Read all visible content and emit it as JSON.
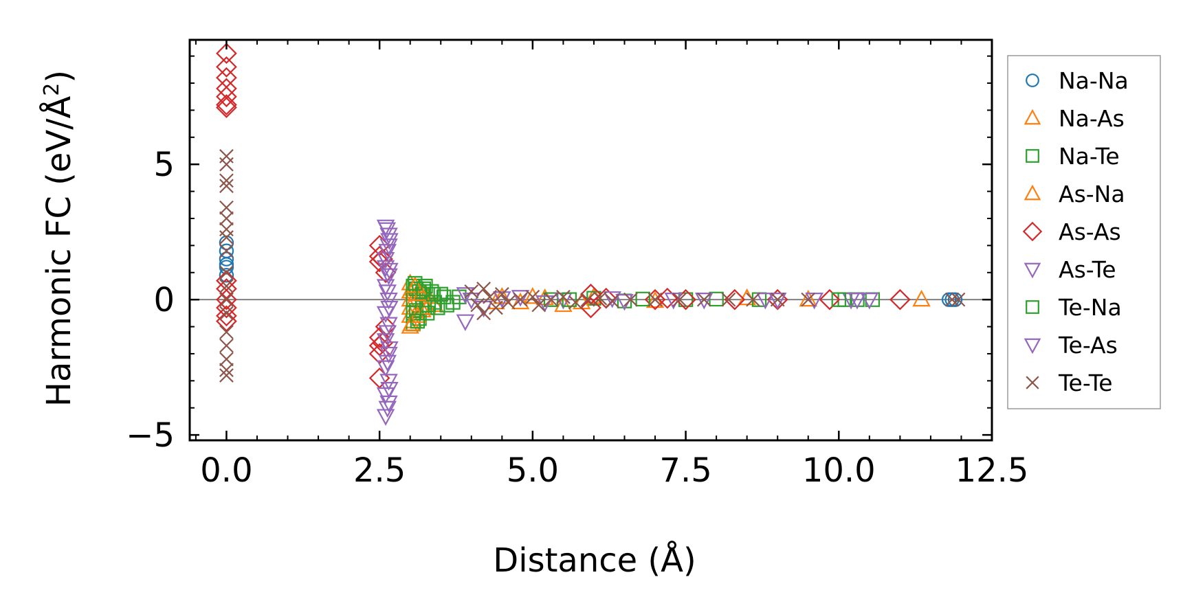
{
  "chart_data": {
    "type": "scatter",
    "title": "",
    "xlabel": "Distance (Å)",
    "ylabel": "Harmonic FC (eV/Å",
    "ylabel_sup": "2",
    "ylabel_close": ")",
    "xlim": [
      -0.6,
      12.5
    ],
    "ylim": [
      -5.2,
      9.6
    ],
    "xticks": [
      0.0,
      2.5,
      5.0,
      7.5,
      10.0,
      12.5
    ],
    "xtick_labels": [
      "0.0",
      "2.5",
      "5.0",
      "7.5",
      "10.0",
      "12.5"
    ],
    "yticks": [
      -5,
      0,
      5
    ],
    "ytick_labels": [
      "−5",
      "0",
      "5"
    ],
    "reference_line_y": 0,
    "legend_position": "right",
    "series": [
      {
        "name": "Na-Na",
        "marker": "circle",
        "color": "#1f77b4",
        "points": [
          [
            0,
            1.2
          ],
          [
            0,
            1.5
          ],
          [
            0,
            1.8
          ],
          [
            0,
            2.1
          ],
          [
            0,
            1.3
          ],
          [
            0,
            0.9
          ],
          [
            11.8,
            0
          ],
          [
            11.85,
            0
          ],
          [
            11.9,
            0
          ]
        ]
      },
      {
        "name": "Na-As",
        "marker": "triangle-up",
        "color": "#ff7f0e",
        "points": [
          [
            3.0,
            0.6
          ],
          [
            3.0,
            0.3
          ],
          [
            3.0,
            0
          ],
          [
            3.0,
            -0.3
          ],
          [
            3.0,
            -0.6
          ],
          [
            3.0,
            -1.0
          ],
          [
            3.05,
            0.4
          ],
          [
            3.05,
            -0.8
          ],
          [
            3.1,
            0.2
          ],
          [
            3.1,
            -0.5
          ],
          [
            3.2,
            0.3
          ],
          [
            3.2,
            -0.4
          ],
          [
            3.3,
            0.1
          ],
          [
            3.4,
            -0.2
          ],
          [
            4.5,
            0.1
          ],
          [
            4.8,
            -0.1
          ],
          [
            5.2,
            0.05
          ],
          [
            5.5,
            -0.2
          ],
          [
            6.0,
            0.1
          ],
          [
            7.0,
            -0.05
          ],
          [
            8.5,
            0.05
          ],
          [
            9.5,
            0
          ],
          [
            11.35,
            0
          ]
        ]
      },
      {
        "name": "Na-Te",
        "marker": "square",
        "color": "#2ca02c",
        "points": [
          [
            3.05,
            0.5
          ],
          [
            3.05,
            0
          ],
          [
            3.05,
            -0.5
          ],
          [
            3.05,
            -0.9
          ],
          [
            3.1,
            0.4
          ],
          [
            3.1,
            -0.4
          ],
          [
            3.15,
            0.3
          ],
          [
            3.15,
            -0.7
          ],
          [
            3.2,
            0.2
          ],
          [
            3.2,
            -0.3
          ],
          [
            3.25,
            0.5
          ],
          [
            3.3,
            -0.2
          ],
          [
            3.35,
            0.3
          ],
          [
            3.4,
            -0.1
          ],
          [
            3.5,
            0.2
          ],
          [
            3.6,
            -0.2
          ],
          [
            3.8,
            0.1
          ],
          [
            5.3,
            0
          ],
          [
            6.0,
            0.05
          ],
          [
            6.5,
            -0.05
          ],
          [
            7.5,
            0
          ],
          [
            8.0,
            0.02
          ],
          [
            10.1,
            0
          ],
          [
            10.3,
            0
          ],
          [
            10.55,
            0
          ]
        ]
      },
      {
        "name": "As-Na",
        "marker": "triangle-up",
        "color": "#ff7f0e",
        "points": [
          [
            3.02,
            -0.9
          ],
          [
            3.08,
            0.5
          ],
          [
            3.12,
            -0.6
          ],
          [
            3.18,
            0.2
          ],
          [
            3.28,
            -0.3
          ],
          [
            4.4,
            -0.1
          ],
          [
            5.0,
            0.1
          ],
          [
            5.8,
            -0.1
          ]
        ]
      },
      {
        "name": "As-As",
        "marker": "diamond",
        "color": "#d62728",
        "points": [
          [
            0,
            9.1
          ],
          [
            0,
            8.6
          ],
          [
            0,
            8.2
          ],
          [
            0,
            7.8
          ],
          [
            0,
            7.5
          ],
          [
            0,
            7.2
          ],
          [
            0,
            7.1
          ],
          [
            0,
            0.7
          ],
          [
            0,
            0.4
          ],
          [
            0,
            0
          ],
          [
            0,
            -0.3
          ],
          [
            0,
            -0.6
          ],
          [
            0,
            -0.8
          ],
          [
            2.5,
            2.0
          ],
          [
            2.5,
            1.6
          ],
          [
            2.5,
            1.4
          ],
          [
            2.5,
            -1.4
          ],
          [
            2.5,
            -1.7
          ],
          [
            2.5,
            -2.0
          ],
          [
            2.5,
            -2.9
          ],
          [
            2.55,
            1.5
          ],
          [
            2.55,
            -1.6
          ],
          [
            2.6,
            1.0
          ],
          [
            2.6,
            -1.0
          ],
          [
            5.95,
            0.2
          ],
          [
            5.95,
            -0.3
          ],
          [
            6.2,
            0.05
          ],
          [
            7.0,
            0
          ],
          [
            7.2,
            0.05
          ],
          [
            7.5,
            0
          ],
          [
            8.3,
            0
          ],
          [
            9.0,
            0
          ],
          [
            9.85,
            0
          ],
          [
            11.0,
            0
          ]
        ]
      },
      {
        "name": "As-Te",
        "marker": "triangle-down",
        "color": "#9467bd",
        "points": [
          [
            2.6,
            2.7
          ],
          [
            2.65,
            2.4
          ],
          [
            2.65,
            2.0
          ],
          [
            2.6,
            1.5
          ],
          [
            2.6,
            1.2
          ],
          [
            2.65,
            0.9
          ],
          [
            2.6,
            0.5
          ],
          [
            2.65,
            0
          ],
          [
            2.6,
            -0.5
          ],
          [
            2.65,
            -0.9
          ],
          [
            2.6,
            -1.5
          ],
          [
            2.65,
            -2.0
          ],
          [
            2.6,
            -2.5
          ],
          [
            2.65,
            -3.0
          ],
          [
            2.6,
            -3.5
          ],
          [
            2.65,
            -3.8
          ],
          [
            2.6,
            -4.3
          ],
          [
            3.9,
            -0.8
          ],
          [
            4.0,
            0
          ],
          [
            4.5,
            0.05
          ],
          [
            5.5,
            0
          ],
          [
            6.5,
            -0.05
          ],
          [
            7.8,
            0
          ],
          [
            9.0,
            0
          ],
          [
            10.2,
            0
          ],
          [
            10.5,
            0
          ]
        ]
      },
      {
        "name": "Te-Na",
        "marker": "square",
        "color": "#2ca02c",
        "points": [
          [
            3.08,
            0.6
          ],
          [
            3.12,
            -0.8
          ],
          [
            3.22,
            0.4
          ],
          [
            3.28,
            -0.5
          ],
          [
            3.38,
            0.2
          ],
          [
            3.45,
            -0.3
          ],
          [
            3.55,
            0.1
          ],
          [
            3.7,
            -0.1
          ],
          [
            5.6,
            0
          ],
          [
            6.8,
            0.02
          ],
          [
            8.7,
            0
          ],
          [
            10.0,
            0
          ]
        ]
      },
      {
        "name": "Te-As",
        "marker": "triangle-down",
        "color": "#9467bd",
        "points": [
          [
            2.62,
            2.6
          ],
          [
            2.66,
            2.2
          ],
          [
            2.63,
            1.8
          ],
          [
            2.66,
            1.1
          ],
          [
            2.63,
            0.3
          ],
          [
            2.66,
            -0.3
          ],
          [
            2.63,
            -1.2
          ],
          [
            2.66,
            -1.8
          ],
          [
            2.63,
            -2.3
          ],
          [
            2.66,
            -3.3
          ],
          [
            2.63,
            -4.0
          ],
          [
            3.9,
            0.2
          ],
          [
            4.2,
            -0.3
          ],
          [
            4.8,
            0.1
          ],
          [
            5.2,
            -0.1
          ],
          [
            6.3,
            0.05
          ],
          [
            7.3,
            0
          ],
          [
            8.8,
            0
          ],
          [
            9.6,
            0
          ],
          [
            10.3,
            0
          ]
        ]
      },
      {
        "name": "Te-Te",
        "marker": "x",
        "color": "#8c564b",
        "points": [
          [
            0,
            5.3
          ],
          [
            0,
            5.0
          ],
          [
            0,
            4.4
          ],
          [
            0,
            4.2
          ],
          [
            0,
            3.4
          ],
          [
            0,
            3.0
          ],
          [
            0,
            2.6
          ],
          [
            0,
            2.3
          ],
          [
            0,
            1.8
          ],
          [
            0,
            1.0
          ],
          [
            0,
            0.5
          ],
          [
            0,
            0
          ],
          [
            0,
            -0.5
          ],
          [
            0,
            -1.2
          ],
          [
            0,
            -1.7
          ],
          [
            0,
            -2.2
          ],
          [
            0,
            -2.6
          ],
          [
            0,
            -2.8
          ],
          [
            4.0,
            0.3
          ],
          [
            4.1,
            -0.2
          ],
          [
            4.2,
            0.4
          ],
          [
            4.2,
            -0.5
          ],
          [
            4.3,
            0.1
          ],
          [
            4.4,
            -0.3
          ],
          [
            4.5,
            0.2
          ],
          [
            4.6,
            -0.1
          ],
          [
            4.8,
            0
          ],
          [
            5.0,
            0.1
          ],
          [
            5.1,
            -0.2
          ],
          [
            5.3,
            0
          ],
          [
            5.5,
            0.1
          ],
          [
            5.7,
            -0.1
          ],
          [
            5.9,
            0
          ],
          [
            6.1,
            0.05
          ],
          [
            6.3,
            -0.05
          ],
          [
            6.6,
            0
          ],
          [
            7.0,
            0
          ],
          [
            7.4,
            0
          ],
          [
            7.8,
            0
          ],
          [
            8.2,
            0
          ],
          [
            8.6,
            0
          ],
          [
            9.0,
            0
          ],
          [
            9.5,
            0
          ],
          [
            11.85,
            0
          ],
          [
            11.95,
            0
          ]
        ]
      }
    ]
  }
}
